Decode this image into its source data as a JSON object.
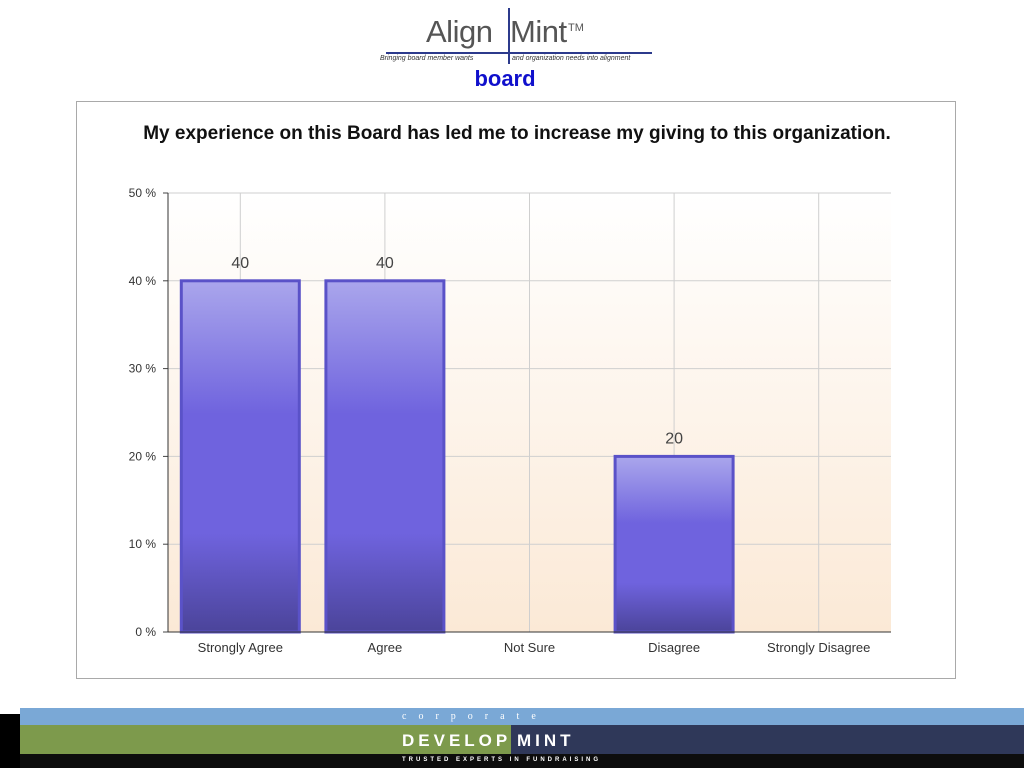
{
  "header": {
    "logo_left": "Align",
    "logo_right": "Mint",
    "logo_tm": "TM",
    "tagline_left": "Bringing board member wants",
    "tagline_right": "and organization needs into alignment",
    "subtitle": "board"
  },
  "chart_data": {
    "type": "bar",
    "title": "My experience on this Board has led me to increase my giving to this organization.",
    "categories": [
      "Strongly Agree",
      "Agree",
      "Not Sure",
      "Disagree",
      "Strongly Disagree"
    ],
    "values": [
      40,
      40,
      0,
      20,
      0
    ],
    "data_labels": [
      "40",
      "40",
      "",
      "20",
      ""
    ],
    "y_ticks": [
      {
        "value": 0,
        "label": "0 %"
      },
      {
        "value": 10,
        "label": "10 %"
      },
      {
        "value": 20,
        "label": "20 %"
      },
      {
        "value": 30,
        "label": "30 %"
      },
      {
        "value": 40,
        "label": "40 %"
      },
      {
        "value": 50,
        "label": "50 %"
      }
    ],
    "ylim": [
      0,
      50
    ],
    "xlabel": "",
    "ylabel": "",
    "grid": true,
    "legend": "none",
    "colors": {
      "bar_light": "#aaa6ec",
      "bar_mid": "#6f63de",
      "bar_dark": "#4b449a",
      "bar_border": "#5a52c8",
      "plot_bg_top": "#ffffff",
      "plot_bg_bottom": "#fbe9d6",
      "grid": "#cfcfcf"
    }
  },
  "footer": {
    "corporate": "corporate",
    "develop": "DEVELOP",
    "mint": "MINT",
    "tagline": "TRUSTED EXPERTS IN FUNDRAISING"
  }
}
